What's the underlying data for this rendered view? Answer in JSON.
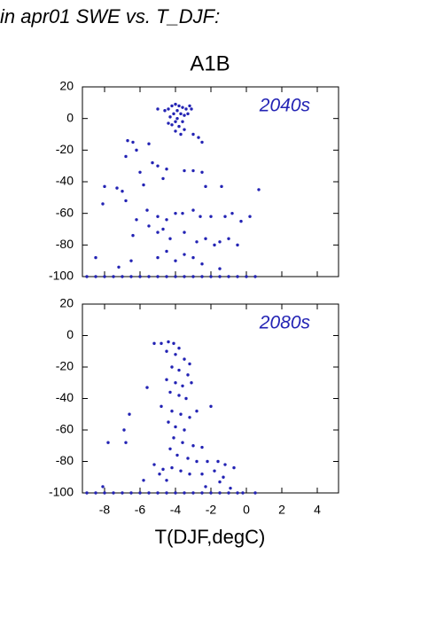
{
  "header": "in apr01 SWE vs. T_DJF:",
  "chart_data": [
    {
      "type": "scatter",
      "title": "A1B",
      "annotation": "2040s",
      "color": "#2323b4",
      "xlim": [
        -9.25,
        5.2
      ],
      "ylim": [
        -100,
        20
      ],
      "xticks": [
        -8,
        -6,
        -4,
        -2,
        0,
        2,
        4
      ],
      "yticks": [
        -100,
        -80,
        -60,
        -40,
        -20,
        0,
        20
      ],
      "x": [
        -4.2,
        -4,
        -3.8,
        -3.6,
        -3.4,
        -3.2,
        -4.4,
        -4.6,
        -3.9,
        -4.1,
        -3.7,
        -3.5,
        -4.3,
        -3.9,
        -4,
        -3.6,
        -4.2,
        -3.8,
        -3.5,
        -4,
        -3.7,
        -4.4,
        -3.3,
        -3.1,
        -5,
        -2.7,
        -2.5,
        -3,
        -6.7,
        -6.4,
        -6.2,
        -5.5,
        -6.8,
        -5.3,
        -6,
        -5,
        -4.7,
        -4.5,
        -3.5,
        -3,
        -2.5,
        -2.3,
        -1.4,
        0.7,
        -8,
        -8.1,
        -7.3,
        -7,
        -6.8,
        -5.8,
        -5.6,
        -6.2,
        -5,
        -4.5,
        -4,
        -3.6,
        -3,
        -2.6,
        -2,
        -1.2,
        -0.8,
        0.2,
        -6.4,
        -5.5,
        -5,
        -4.7,
        -4.3,
        -3.5,
        -2.8,
        -2.3,
        -1.8,
        -1.5,
        -1,
        -0.5,
        -5,
        -4.5,
        -4,
        -3.5,
        -2.5,
        -7.2,
        -8.5,
        -6.5,
        -3,
        -1.5,
        -0.3,
        -9,
        -8.5,
        -8,
        -7.5,
        -7,
        -6.5,
        -6,
        -5.5,
        -5,
        -4.5,
        -4,
        -3.5,
        -3,
        -2.5,
        -2,
        -1.5,
        -1,
        -0.5,
        0,
        0.5
      ],
      "values": [
        8,
        9,
        8,
        7,
        6,
        8,
        6,
        5,
        5,
        3,
        3,
        2,
        1,
        0,
        -2,
        -2,
        -4,
        -5,
        -7,
        -8,
        -10,
        -3,
        3,
        6,
        6,
        -12,
        -15,
        -10,
        -14,
        -15,
        -20,
        -16,
        -24,
        -28,
        -34,
        -30,
        -38,
        -32,
        -33,
        -33,
        -34,
        -43,
        -43,
        -45,
        -43,
        -54,
        -44,
        -46,
        -52,
        -42,
        -58,
        -64,
        -62,
        -64,
        -60,
        -60,
        -58,
        -62,
        -62,
        -62,
        -60,
        -62,
        -74,
        -68,
        -72,
        -70,
        -76,
        -72,
        -78,
        -76,
        -80,
        -78,
        -76,
        -80,
        -88,
        -84,
        -90,
        -86,
        -92,
        -94,
        -88,
        -90,
        -88,
        -95,
        -65,
        -100,
        -100,
        -100,
        -100,
        -100,
        -100,
        -100,
        -100,
        -100,
        -100,
        -100,
        -100,
        -100,
        -100,
        -100,
        -100,
        -100,
        -100,
        -100,
        -100
      ]
    },
    {
      "type": "scatter",
      "annotation": "2080s",
      "xlabel": "T(DJF,degC)",
      "color": "#2323b4",
      "xlim": [
        -9.25,
        5.2
      ],
      "ylim": [
        -100,
        20
      ],
      "xticks": [
        -8,
        -6,
        -4,
        -2,
        0,
        2,
        4
      ],
      "yticks": [
        -100,
        -80,
        -60,
        -40,
        -20,
        0,
        20
      ],
      "x": [
        -5.2,
        -4.8,
        -4.4,
        -4.1,
        -3.8,
        -4.5,
        -4,
        -3.5,
        -3.2,
        -4.2,
        -3.8,
        -3.3,
        -4.5,
        -4,
        -3.6,
        -3.1,
        -4.3,
        -3.8,
        -3.4,
        -4.8,
        -4.2,
        -3.7,
        -3.2,
        -2.8,
        -2,
        -4.4,
        -4,
        -3.5,
        -4.1,
        -3.6,
        -3,
        -2.5,
        -4.3,
        -3.9,
        -3.3,
        -2.8,
        -2.2,
        -1.6,
        -1.2,
        -0.7,
        -5.2,
        -4.7,
        -4.2,
        -3.7,
        -3.2,
        -2.5,
        -1.8,
        -1.3,
        -4.9,
        -4.5,
        -5.6,
        -6.6,
        -6.9,
        -6.8,
        -7.8,
        -8.1,
        -5.8,
        -2.3,
        -1.5,
        -0.9,
        -9,
        -8.5,
        -8,
        -7.5,
        -7,
        -6.5,
        -6,
        -5.5,
        -5,
        -4.5,
        -4,
        -3.5,
        -3,
        -2.5,
        -2,
        -1.5,
        -1,
        -0.5,
        -0.2,
        0.5
      ],
      "values": [
        -5,
        -5,
        -4,
        -5,
        -8,
        -10,
        -12,
        -15,
        -18,
        -20,
        -22,
        -25,
        -28,
        -30,
        -32,
        -30,
        -36,
        -38,
        -40,
        -45,
        -48,
        -50,
        -52,
        -48,
        -45,
        -55,
        -58,
        -60,
        -65,
        -68,
        -70,
        -71,
        -72,
        -76,
        -78,
        -80,
        -80,
        -80,
        -82,
        -84,
        -82,
        -85,
        -84,
        -86,
        -88,
        -88,
        -86,
        -90,
        -88,
        -92,
        -33,
        -50,
        -60,
        -68,
        -68,
        -96,
        -92,
        -96,
        -93,
        -97,
        -100,
        -100,
        -100,
        -100,
        -100,
        -100,
        -100,
        -100,
        -100,
        -100,
        -100,
        -100,
        -100,
        -100,
        -100,
        -100,
        -100,
        -100,
        -100,
        -100
      ]
    }
  ]
}
